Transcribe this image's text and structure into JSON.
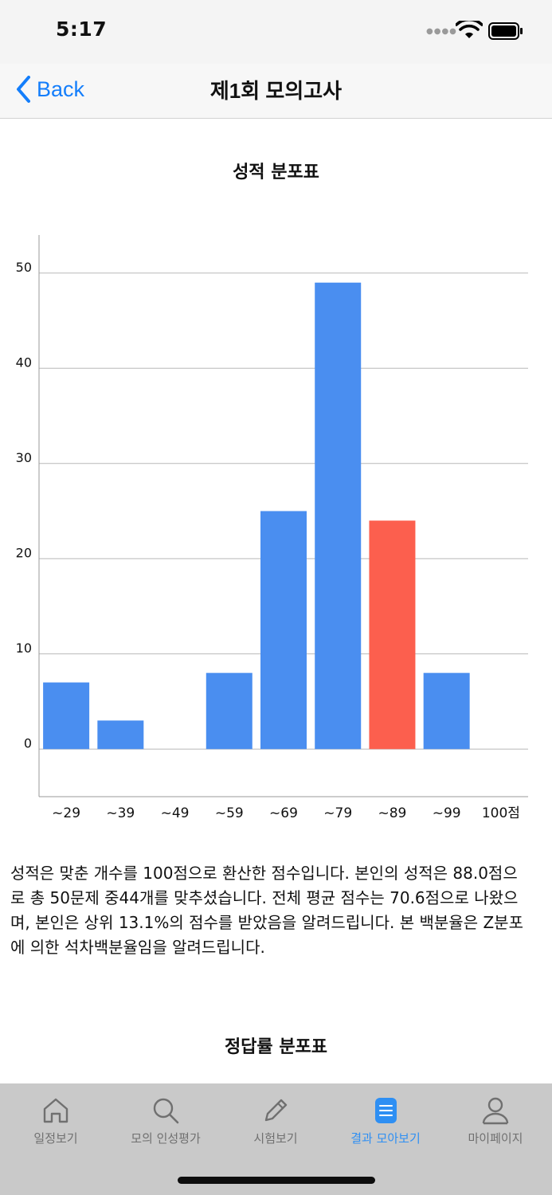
{
  "status_bar": {
    "time": "5:17",
    "dots": "●●●●"
  },
  "nav": {
    "back_label": "Back",
    "title": "제1회 모의고사"
  },
  "chart_data": {
    "type": "bar",
    "title": "성적 분포표",
    "categories": [
      "~29",
      "~39",
      "~49",
      "~59",
      "~69",
      "~79",
      "~89",
      "~99",
      "100점"
    ],
    "values": [
      7,
      3,
      0,
      8,
      25,
      49,
      24,
      8,
      0
    ],
    "highlight_index": 6,
    "ylim": [
      -5,
      54
    ],
    "yticks": [
      0,
      10,
      20,
      30,
      40,
      50
    ],
    "bar_color": "#4a8ef0",
    "highlight_color": "#fc5f4e",
    "grid": true,
    "xlabel": "",
    "ylabel": ""
  },
  "summary": {
    "text": "성적은 맞춘 개수를 100점으로 환산한 점수입니다. 본인의 성적은 88.0점으로 총 50문제 중44개를 맞추셨습니다. 전체 평균 점수는 70.6점으로 나왔으며, 본인은 상위 13.1%의 점수를 받았음을 알려드립니다. 본 백분율은 Z분포에 의한 석차백분율임을 알려드립니다."
  },
  "accuracy_section": {
    "title": "정답률 분포표"
  },
  "tabs": [
    {
      "label": "일정보기",
      "icon": "home-icon"
    },
    {
      "label": "모의 인성평가",
      "icon": "search-icon"
    },
    {
      "label": "시험보기",
      "icon": "pencil-icon"
    },
    {
      "label": "결과 모아보기",
      "icon": "document-icon",
      "active": true
    },
    {
      "label": "마이페이지",
      "icon": "person-icon"
    }
  ],
  "colors": {
    "accent": "#147efb",
    "tab_active": "#2e8ff3",
    "tab_inactive": "#707070"
  }
}
